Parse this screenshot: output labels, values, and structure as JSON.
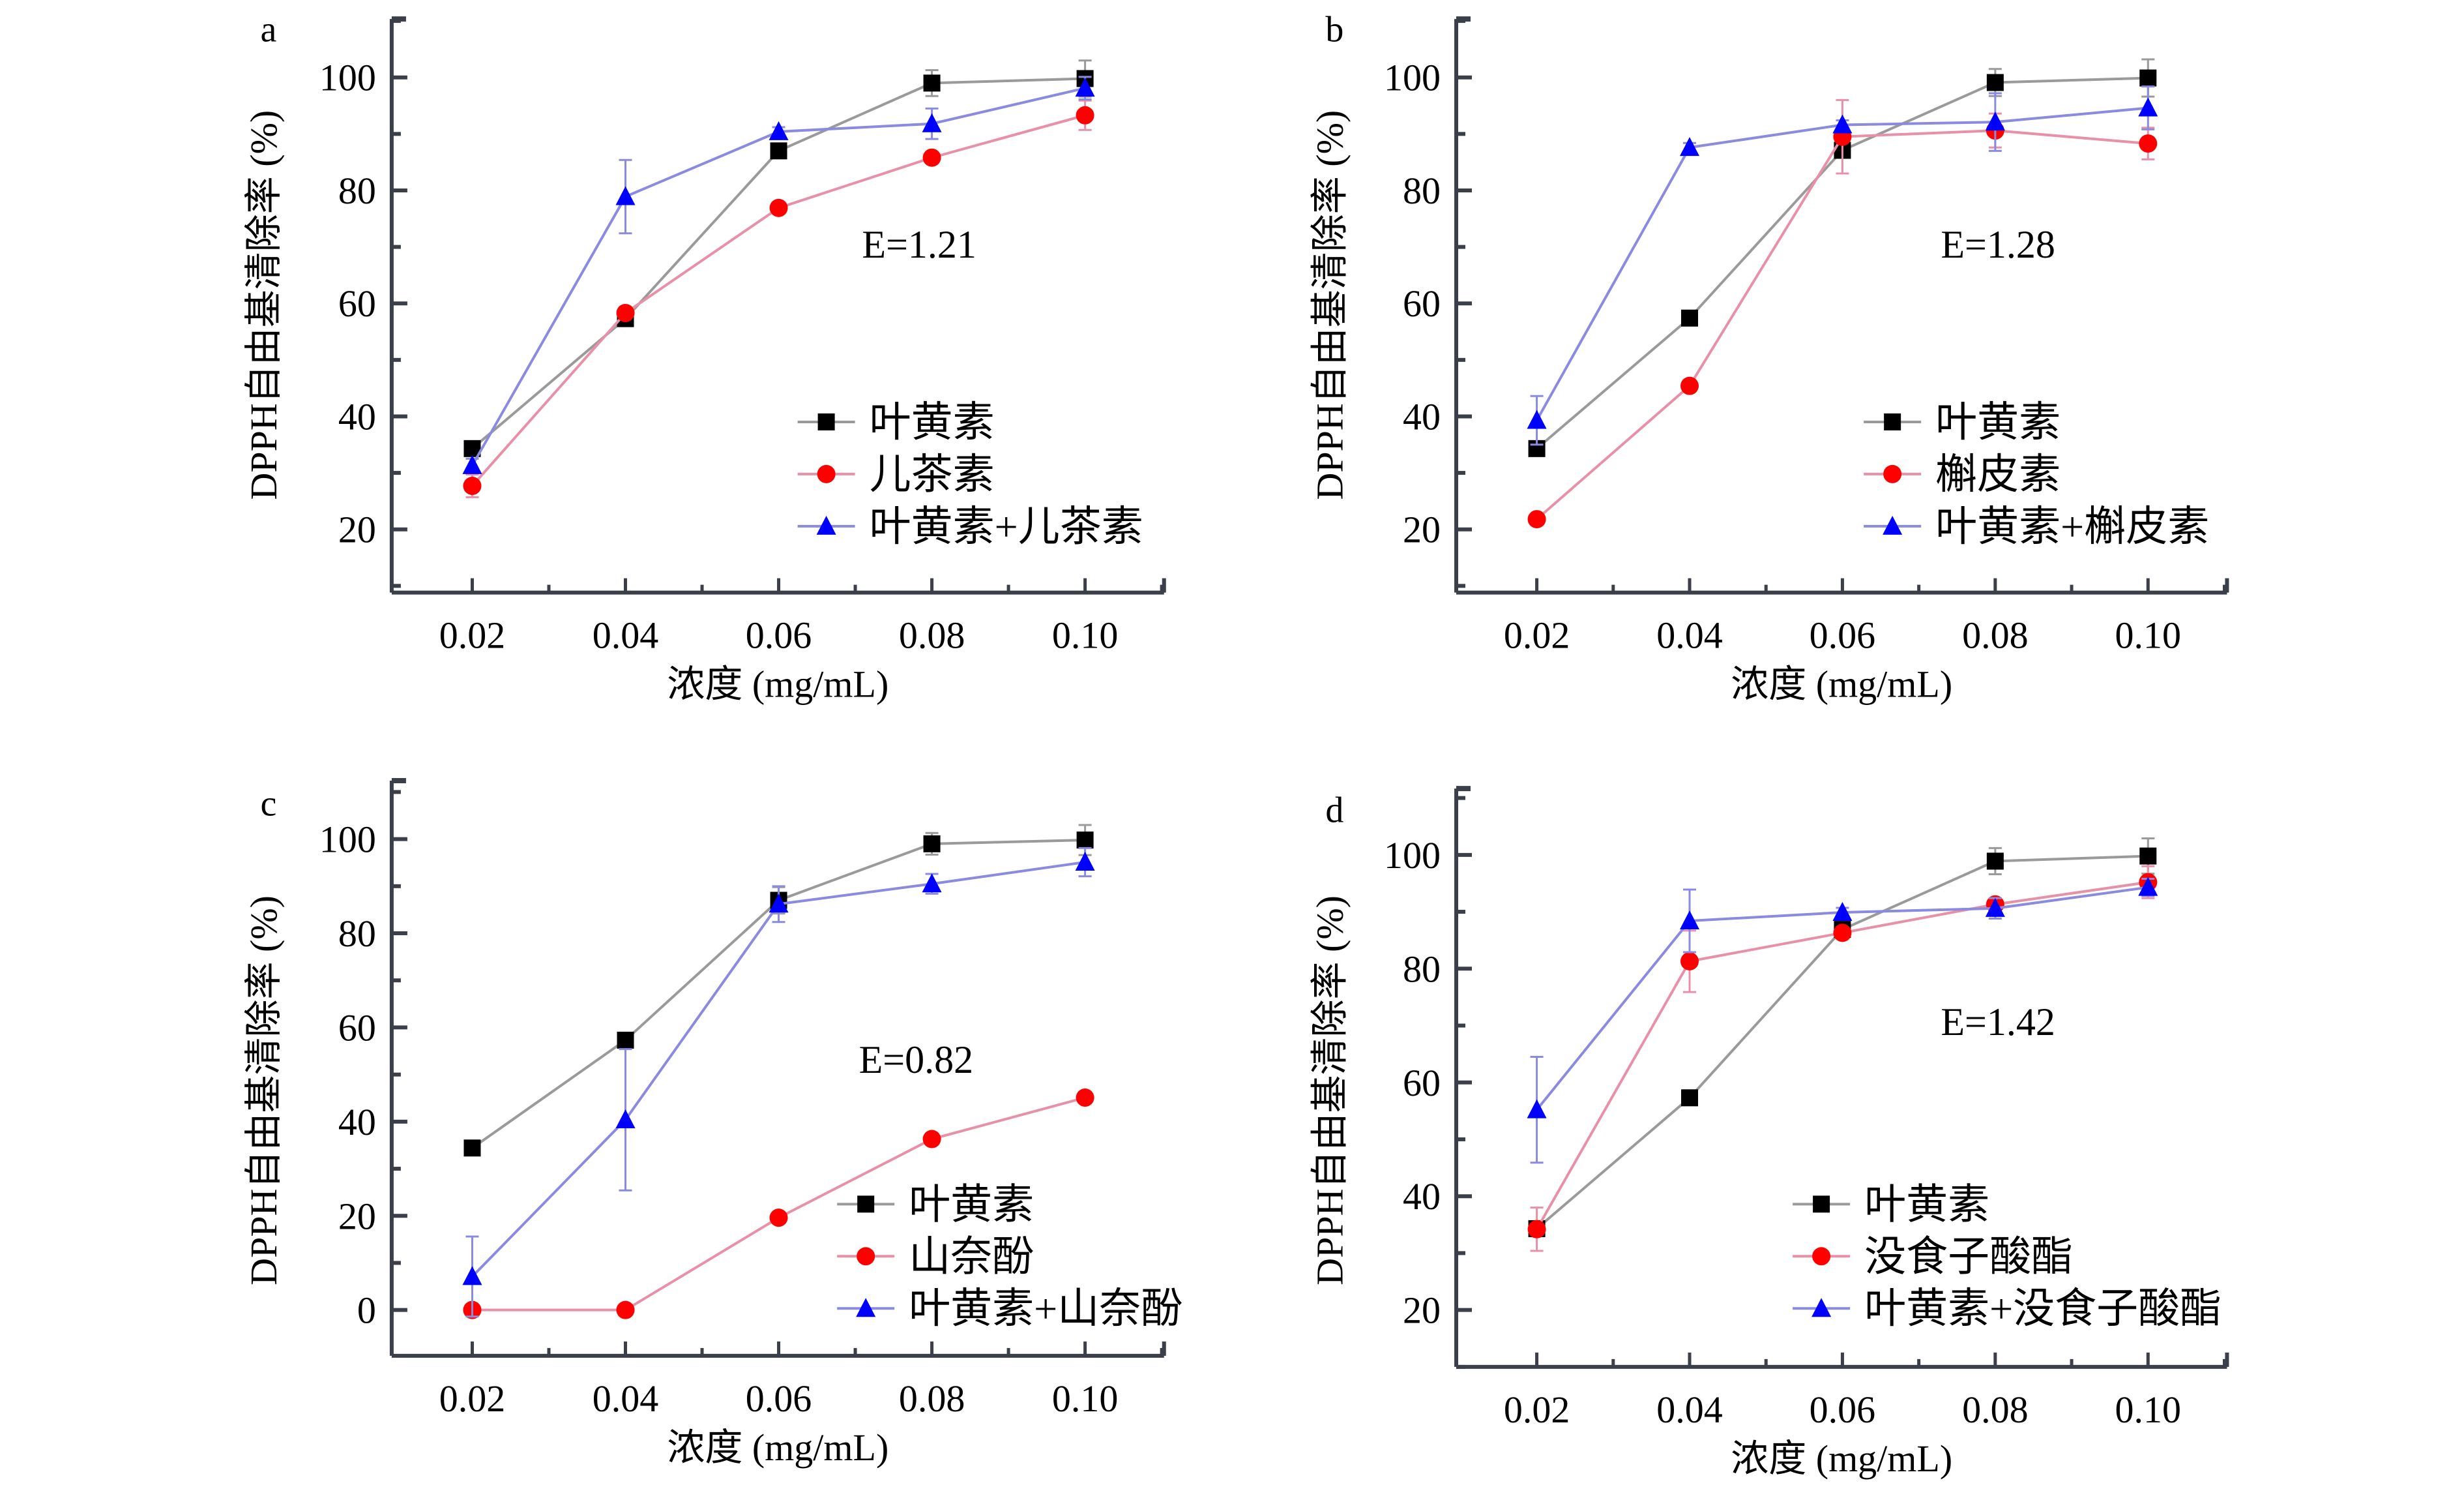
{
  "chart_data": [
    {
      "type": "line",
      "panel": "a",
      "annotation": "E=1.21",
      "xlabel": "浓度 (mg/mL)",
      "ylabel": "DPPH自由基清除率 (%)",
      "x": [
        0.02,
        0.04,
        0.06,
        0.08,
        0.1
      ],
      "x_tick_labels": [
        "0.02",
        "0.04",
        "0.06",
        "0.08",
        "0.10"
      ],
      "y_ticks": [
        20,
        40,
        60,
        80,
        100
      ],
      "ylim": [
        10,
        110
      ],
      "legend_position": "bottom-right",
      "series": [
        {
          "name": "叶黄素",
          "marker": "square",
          "color": "#000000",
          "line_color": "#9a9a9a",
          "values": [
            34.3,
            57.3,
            87.0,
            99.0,
            99.8
          ],
          "errors": [
            1.2,
            1.2,
            1.0,
            2.3,
            3.2
          ]
        },
        {
          "name": "儿茶素",
          "marker": "circle",
          "color": "#ff0000",
          "line_color": "#e890a8",
          "values": [
            27.7,
            58.3,
            76.9,
            85.8,
            93.3
          ],
          "errors": [
            2.0,
            1.0,
            1.0,
            1.0,
            2.6
          ]
        },
        {
          "name": "叶黄素+儿茶素",
          "marker": "triangle",
          "color": "#0000ff",
          "line_color": "#8a8ae0",
          "values": [
            31.3,
            78.9,
            90.4,
            91.8,
            98.1
          ],
          "errors": [
            1.2,
            6.5,
            0.8,
            2.7,
            2.0
          ]
        }
      ]
    },
    {
      "type": "line",
      "panel": "b",
      "annotation": "E=1.28",
      "xlabel": "浓度 (mg/mL)",
      "ylabel": "DPPH自由基清除率 (%)",
      "x": [
        0.02,
        0.04,
        0.06,
        0.08,
        0.1
      ],
      "x_tick_labels": [
        "0.02",
        "0.04",
        "0.06",
        "0.08",
        "0.10"
      ],
      "y_ticks": [
        20,
        40,
        60,
        80,
        100
      ],
      "ylim": [
        10,
        110
      ],
      "legend_position": "bottom-right",
      "series": [
        {
          "name": "叶黄素",
          "marker": "square",
          "color": "#000000",
          "line_color": "#9a9a9a",
          "values": [
            34.3,
            57.4,
            87.1,
            99.1,
            99.9
          ],
          "errors": [
            1.0,
            1.2,
            1.0,
            2.4,
            3.3
          ]
        },
        {
          "name": "槲皮素",
          "marker": "circle",
          "color": "#ff0000",
          "line_color": "#e890a8",
          "values": [
            21.8,
            45.4,
            89.5,
            90.6,
            88.3
          ],
          "errors": [
            1.0,
            1.0,
            6.5,
            3.0,
            2.8
          ]
        },
        {
          "name": "叶黄素+槲皮素",
          "marker": "triangle",
          "color": "#0000ff",
          "line_color": "#8a8ae0",
          "values": [
            39.3,
            87.6,
            91.6,
            92.1,
            94.6
          ],
          "errors": [
            4.3,
            0.8,
            0.8,
            5.1,
            3.8
          ]
        }
      ]
    },
    {
      "type": "line",
      "panel": "c",
      "annotation": "E=0.82",
      "xlabel": "浓度 (mg/mL)",
      "ylabel": "DPPH自由基清除率 (%)",
      "x": [
        0.02,
        0.04,
        0.06,
        0.08,
        0.1
      ],
      "x_tick_labels": [
        "0.02",
        "0.04",
        "0.06",
        "0.08",
        "0.10"
      ],
      "y_ticks": [
        0,
        20,
        40,
        60,
        80,
        100
      ],
      "ylim": [
        -10,
        110
      ],
      "legend_position": "bottom-right",
      "series": [
        {
          "name": "叶黄素",
          "marker": "square",
          "color": "#000000",
          "line_color": "#9a9a9a",
          "values": [
            34.4,
            57.3,
            87.0,
            99.0,
            99.8
          ],
          "errors": [
            1.0,
            1.2,
            2.8,
            2.3,
            3.2
          ]
        },
        {
          "name": "山奈酚",
          "marker": "circle",
          "color": "#ff0000",
          "line_color": "#e890a8",
          "values": [
            0.0,
            0.0,
            19.6,
            36.3,
            45.1
          ],
          "errors": [
            0.6,
            0.6,
            0.6,
            0.8,
            0.8
          ]
        },
        {
          "name": "叶黄素+山奈酚",
          "marker": "triangle",
          "color": "#0000ff",
          "line_color": "#8a8ae0",
          "values": [
            7.1,
            40.4,
            86.2,
            90.5,
            95.1
          ],
          "errors": [
            8.5,
            15.0,
            3.8,
            2.1,
            3.0
          ]
        }
      ]
    },
    {
      "type": "line",
      "panel": "d",
      "annotation": "E=1.42",
      "xlabel": "浓度 (mg/mL)",
      "ylabel": "DPPH自由基清除率 (%)",
      "x": [
        0.02,
        0.04,
        0.06,
        0.08,
        0.1
      ],
      "x_tick_labels": [
        "0.02",
        "0.04",
        "0.06",
        "0.08",
        "0.10"
      ],
      "y_ticks": [
        20,
        40,
        60,
        80,
        100
      ],
      "ylim": [
        10,
        110
      ],
      "legend_position": "bottom-right",
      "series": [
        {
          "name": "叶黄素",
          "marker": "square",
          "color": "#000000",
          "line_color": "#9a9a9a",
          "values": [
            34.3,
            57.3,
            86.9,
            98.9,
            99.8
          ],
          "errors": [
            1.0,
            1.2,
            1.0,
            2.3,
            3.1
          ]
        },
        {
          "name": "没食子酸酯",
          "marker": "circle",
          "color": "#ff0000",
          "line_color": "#e890a8",
          "values": [
            34.2,
            81.3,
            86.3,
            91.3,
            95.2
          ],
          "errors": [
            3.8,
            5.4,
            1.0,
            1.0,
            2.8
          ]
        },
        {
          "name": "叶黄素+没食子酸酯",
          "marker": "triangle",
          "color": "#0000ff",
          "line_color": "#8a8ae0",
          "values": [
            55.2,
            88.4,
            89.9,
            90.6,
            94.3
          ],
          "errors": [
            9.3,
            5.5,
            0.8,
            1.8,
            1.5
          ]
        }
      ]
    }
  ]
}
